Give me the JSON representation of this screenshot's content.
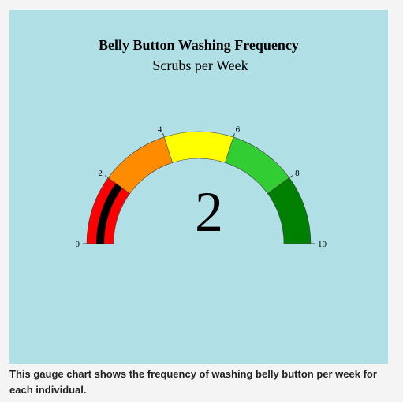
{
  "chart_data": {
    "type": "gauge",
    "title": "Belly Button Washing Frequency",
    "subtitle": "Scrubs per Week",
    "value": 2,
    "value_label": "2",
    "range": [
      0,
      10
    ],
    "ticks": [
      {
        "value": 0,
        "label": "0"
      },
      {
        "value": 2,
        "label": "2"
      },
      {
        "value": 4,
        "label": "4"
      },
      {
        "value": 6,
        "label": "6"
      },
      {
        "value": 8,
        "label": "8"
      },
      {
        "value": 10,
        "label": "10"
      }
    ],
    "bands": [
      {
        "from": 0,
        "to": 2,
        "color": "#ff0000"
      },
      {
        "from": 2,
        "to": 4,
        "color": "#ff8c00"
      },
      {
        "from": 4,
        "to": 6,
        "color": "#ffff00"
      },
      {
        "from": 6,
        "to": 8,
        "color": "#32cd32"
      },
      {
        "from": 8,
        "to": 10,
        "color": "#008000"
      }
    ],
    "bar_color": "#000000",
    "background_color": "#b0dfe6"
  },
  "caption": "This gauge chart shows the frequency of washing belly button per week for each individual."
}
